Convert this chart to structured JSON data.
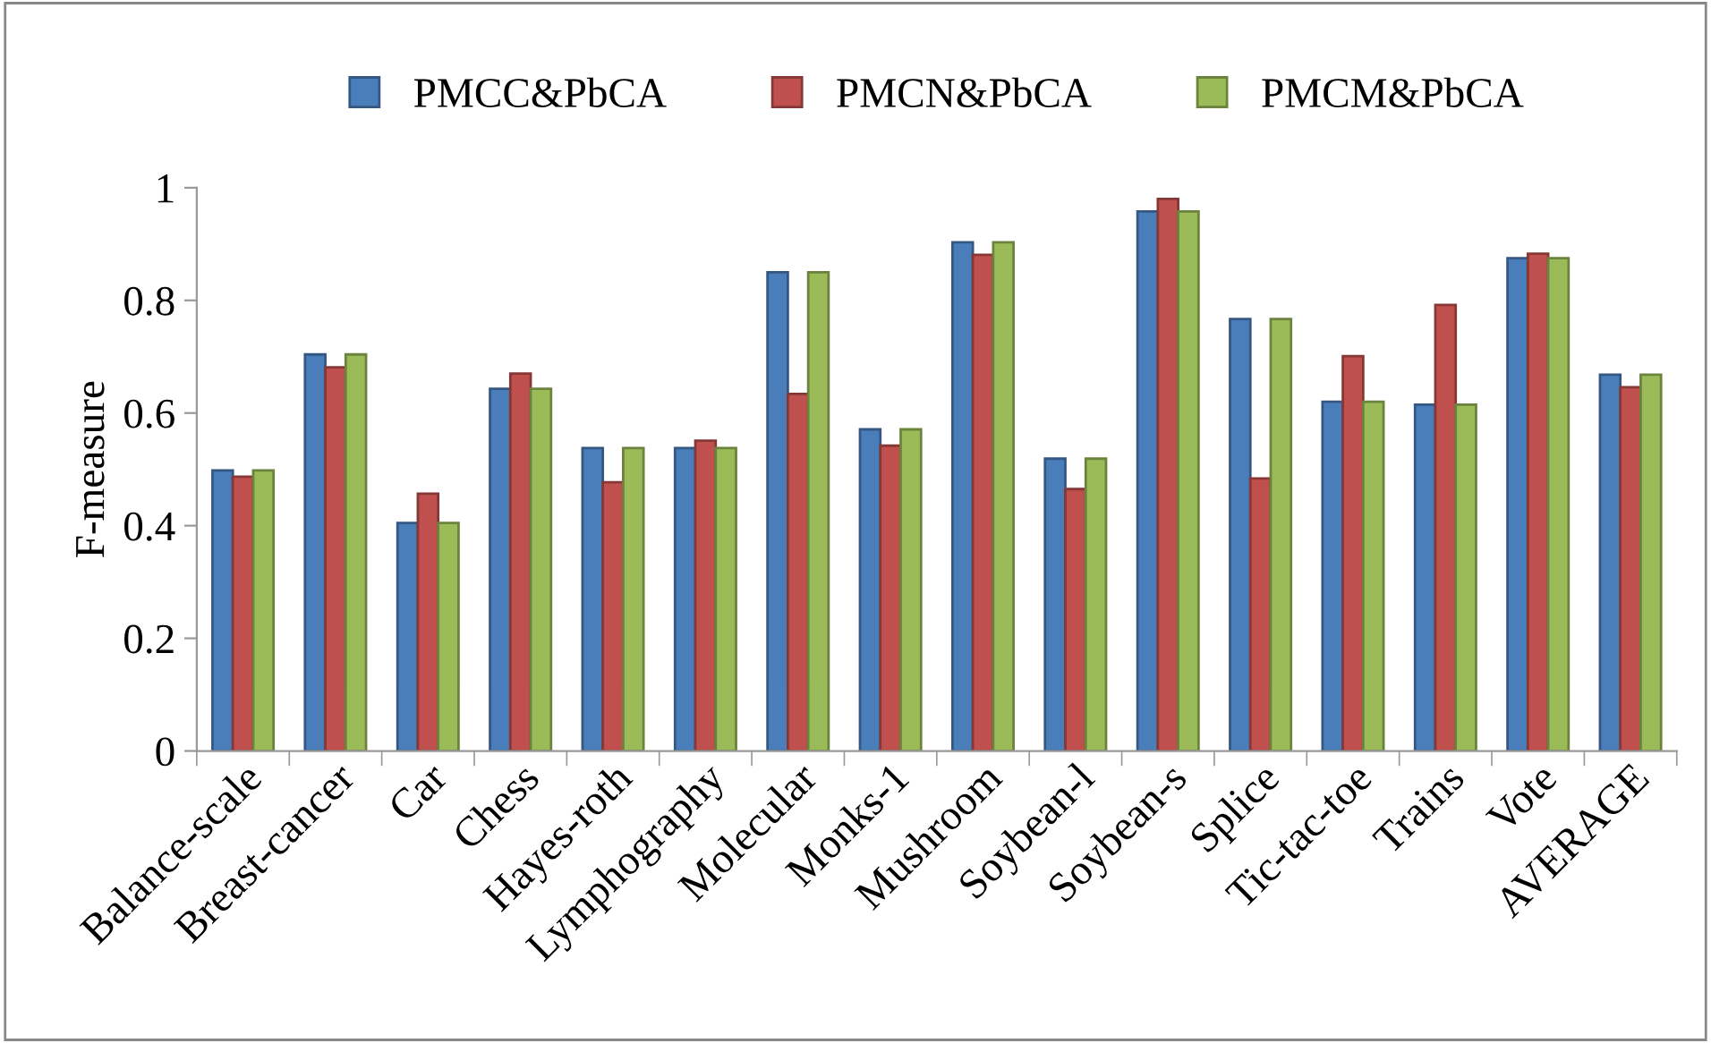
{
  "chart_data": {
    "type": "bar",
    "ylabel": "F-measure",
    "categories": [
      "Balance-scale",
      "Breast-cancer",
      "Car",
      "Chess",
      "Hayes-roth",
      "Lymphography",
      "Molecular",
      "Monks-1",
      "Mushroom",
      "Soybean-l",
      "Soybean-s",
      "Splice",
      "Tic-tac-toe",
      "Trains",
      "Vote",
      "AVERAGE"
    ],
    "series": [
      {
        "name": "PMCC&PbCA",
        "color": "#4a7ebb",
        "values": [
          0.498,
          0.704,
          0.405,
          0.643,
          0.538,
          0.538,
          0.85,
          0.571,
          0.903,
          0.519,
          0.958,
          0.767,
          0.62,
          0.615,
          0.875,
          0.668
        ]
      },
      {
        "name": "PMCN&PbCA",
        "color": "#c0504d",
        "values": [
          0.487,
          0.681,
          0.457,
          0.67,
          0.477,
          0.551,
          0.634,
          0.542,
          0.881,
          0.465,
          0.98,
          0.484,
          0.701,
          0.792,
          0.883,
          0.646
        ]
      },
      {
        "name": "PMCM&PbCA",
        "color": "#9bbb59",
        "values": [
          0.498,
          0.704,
          0.405,
          0.643,
          0.538,
          0.538,
          0.85,
          0.571,
          0.903,
          0.519,
          0.958,
          0.767,
          0.62,
          0.615,
          0.875,
          0.668
        ]
      }
    ],
    "ylim": [
      0,
      1
    ],
    "yticks": [
      0,
      0.2,
      0.4,
      0.6,
      0.8,
      1
    ],
    "grid": false,
    "legend": "top"
  }
}
